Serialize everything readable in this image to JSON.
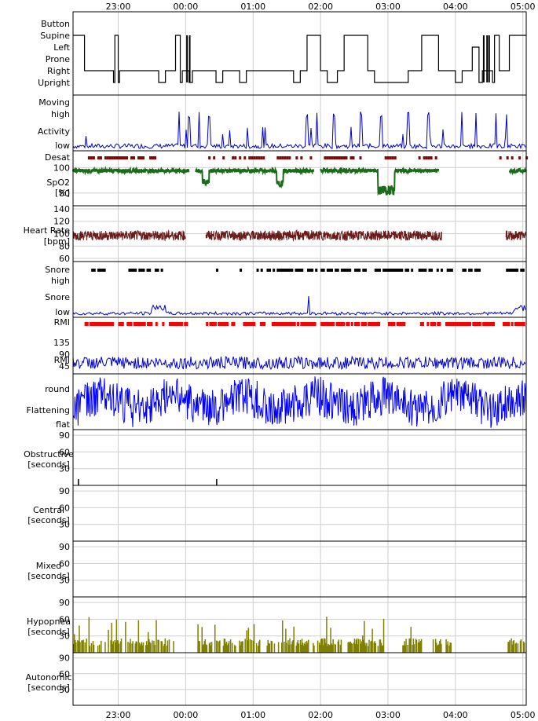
{
  "chart_data": {
    "type": "line",
    "time_axis": {
      "start": "22:20",
      "end": "05:02",
      "tick_labels": [
        "23:00",
        "00:00",
        "01:00",
        "02:00",
        "03:00",
        "04:00",
        "05:00"
      ],
      "tick_times_h": [
        23,
        24,
        25,
        26,
        27,
        28,
        29
      ],
      "start_h": 22.33,
      "end_h": 29.05
    },
    "colors": {
      "position": "#000000",
      "activity": "#0000cc",
      "desat": "#8b0000",
      "spo2": "#1a6b1a",
      "heart_rate": "#6b1a1a",
      "snore": "#0000cc",
      "snore_events": "#000000",
      "rmi": "#0000cc",
      "rmi_events": "#ff0000",
      "flattening": "#0000ff",
      "hypopnea": "#808000",
      "obstructive": "#000000"
    },
    "panels": {
      "position": {
        "levels": [
          "Button",
          "Supine",
          "Left",
          "Prone",
          "Right",
          "Upright"
        ],
        "segments": [
          [
            22.33,
            "Supine"
          ],
          [
            22.5,
            "Right"
          ],
          [
            22.93,
            "Upright"
          ],
          [
            22.95,
            "Supine"
          ],
          [
            23.0,
            "Upright"
          ],
          [
            23.02,
            "Right"
          ],
          [
            23.6,
            "Upright"
          ],
          [
            23.7,
            "Right"
          ],
          [
            23.85,
            "Supine"
          ],
          [
            23.92,
            "Upright"
          ],
          [
            23.95,
            "Right"
          ],
          [
            24.05,
            "Upright"
          ],
          [
            24.1,
            "Right"
          ],
          [
            24.45,
            "Upright"
          ],
          [
            24.55,
            "Right"
          ],
          [
            24.8,
            "Upright"
          ],
          [
            24.9,
            "Right"
          ],
          [
            25.6,
            "Upright"
          ],
          [
            25.7,
            "Right"
          ],
          [
            25.8,
            "Supine"
          ],
          [
            26.0,
            "Right"
          ],
          [
            26.1,
            "Upright"
          ],
          [
            26.25,
            "Right"
          ],
          [
            26.35,
            "Supine"
          ],
          [
            26.7,
            "Right"
          ],
          [
            26.8,
            "Upright"
          ],
          [
            27.3,
            "Right"
          ],
          [
            27.5,
            "Supine"
          ],
          [
            27.75,
            "Right"
          ],
          [
            28.0,
            "Upright"
          ],
          [
            28.1,
            "Right"
          ],
          [
            28.25,
            "Left"
          ],
          [
            28.35,
            "Upright"
          ],
          [
            28.4,
            "Right"
          ],
          [
            28.55,
            "Upright"
          ],
          [
            28.58,
            "Supine"
          ],
          [
            28.65,
            "Right"
          ],
          [
            28.8,
            "Supine"
          ],
          [
            29.05,
            "Supine"
          ]
        ]
      },
      "activity": {
        "labels": [
          "Moving",
          "high",
          "Activity",
          "low"
        ]
      },
      "desat": {
        "label": "Desat"
      },
      "spo2": {
        "label": "SpO2",
        "unit": "[%]",
        "ticks": [
          "100",
          "80"
        ],
        "ylim": [
          70,
          102
        ]
      },
      "heart_rate": {
        "label": "Heart Rate",
        "unit": "[bpm]",
        "ticks": [
          "140",
          "120",
          "100",
          "80",
          "60"
        ],
        "ylim": [
          55,
          145
        ]
      },
      "snore": {
        "labels": [
          "Snore",
          "high",
          "Snore",
          "low"
        ]
      },
      "rmi": {
        "label": "RMI",
        "ticks": [
          "135",
          "90",
          "45"
        ]
      },
      "flattening": {
        "labels": [
          "round",
          "Flattening",
          "flat"
        ]
      },
      "events": [
        {
          "key": "obstructive",
          "label": "Obstructive",
          "unit": "[seconds]",
          "ticks": [
            "90",
            "60",
            "30"
          ],
          "ylim": [
            0,
            100
          ]
        },
        {
          "key": "central",
          "label": "Central",
          "unit": "[seconds]",
          "ticks": [
            "90",
            "60",
            "30"
          ],
          "ylim": [
            0,
            100
          ]
        },
        {
          "key": "mixed",
          "label": "Mixed",
          "unit": "[seconds]",
          "ticks": [
            "90",
            "60",
            "30"
          ],
          "ylim": [
            0,
            100
          ]
        },
        {
          "key": "hypopnea",
          "label": "Hypopnea",
          "unit": "[seconds]",
          "ticks": [
            "90",
            "60",
            "30"
          ],
          "ylim": [
            0,
            100
          ]
        },
        {
          "key": "autonomic",
          "label": "Autonomic",
          "unit": "[seconds]",
          "ticks": [
            "90",
            "60",
            "30"
          ],
          "ylim": [
            0,
            100
          ]
        }
      ]
    }
  }
}
